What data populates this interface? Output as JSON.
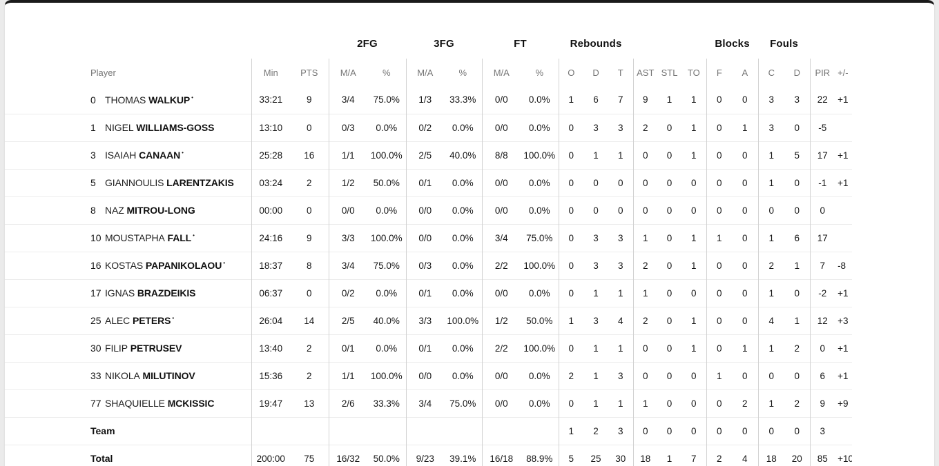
{
  "colors": {
    "top_bar": "#1a1a1a",
    "card_bg": "#ffffff",
    "page_bg": "#ebebeb"
  },
  "table": {
    "group_headers": [
      "2FG",
      "3FG",
      "FT",
      "Rebounds",
      "Blocks",
      "Fouls"
    ],
    "columns": {
      "player": "Player",
      "min": "Min",
      "pts": "PTS",
      "made_attempted": "M/A",
      "percent": "%",
      "reb_o": "O",
      "reb_d": "D",
      "reb_t": "T",
      "ast": "AST",
      "stl": "STL",
      "to": "TO",
      "blk_f": "F",
      "blk_a": "A",
      "foul_c": "C",
      "foul_d": "D",
      "pir": "PIR",
      "plus_minus": "+/-"
    },
    "rows": [
      {
        "num": "0",
        "first": "THOMAS",
        "last": "WALKUP",
        "starter": true,
        "min": "33:21",
        "pts": "9",
        "fg2_ma": "3/4",
        "fg2_pct": "75.0%",
        "fg3_ma": "1/3",
        "fg3_pct": "33.3%",
        "ft_ma": "0/0",
        "ft_pct": "0.0%",
        "reb_o": "1",
        "reb_d": "6",
        "reb_t": "7",
        "ast": "9",
        "stl": "1",
        "to": "1",
        "blk_f": "0",
        "blk_a": "0",
        "foul_c": "3",
        "foul_d": "3",
        "pir": "22",
        "pm": "+1"
      },
      {
        "num": "1",
        "first": "NIGEL",
        "last": "WILLIAMS-GOSS",
        "starter": false,
        "min": "13:10",
        "pts": "0",
        "fg2_ma": "0/3",
        "fg2_pct": "0.0%",
        "fg3_ma": "0/2",
        "fg3_pct": "0.0%",
        "ft_ma": "0/0",
        "ft_pct": "0.0%",
        "reb_o": "0",
        "reb_d": "3",
        "reb_t": "3",
        "ast": "2",
        "stl": "0",
        "to": "1",
        "blk_f": "0",
        "blk_a": "1",
        "foul_c": "3",
        "foul_d": "0",
        "pir": "-5",
        "pm": ""
      },
      {
        "num": "3",
        "first": "ISAIAH",
        "last": "CANAAN",
        "starter": true,
        "min": "25:28",
        "pts": "16",
        "fg2_ma": "1/1",
        "fg2_pct": "100.0%",
        "fg3_ma": "2/5",
        "fg3_pct": "40.0%",
        "ft_ma": "8/8",
        "ft_pct": "100.0%",
        "reb_o": "0",
        "reb_d": "1",
        "reb_t": "1",
        "ast": "0",
        "stl": "0",
        "to": "1",
        "blk_f": "0",
        "blk_a": "0",
        "foul_c": "1",
        "foul_d": "5",
        "pir": "17",
        "pm": "+1"
      },
      {
        "num": "5",
        "first": "GIANNOULIS",
        "last": "LARENTZAKIS",
        "starter": false,
        "min": "03:24",
        "pts": "2",
        "fg2_ma": "1/2",
        "fg2_pct": "50.0%",
        "fg3_ma": "0/1",
        "fg3_pct": "0.0%",
        "ft_ma": "0/0",
        "ft_pct": "0.0%",
        "reb_o": "0",
        "reb_d": "0",
        "reb_t": "0",
        "ast": "0",
        "stl": "0",
        "to": "0",
        "blk_f": "0",
        "blk_a": "0",
        "foul_c": "1",
        "foul_d": "0",
        "pir": "-1",
        "pm": "+1"
      },
      {
        "num": "8",
        "first": "NAZ",
        "last": "MITROU-LONG",
        "starter": false,
        "min": "00:00",
        "pts": "0",
        "fg2_ma": "0/0",
        "fg2_pct": "0.0%",
        "fg3_ma": "0/0",
        "fg3_pct": "0.0%",
        "ft_ma": "0/0",
        "ft_pct": "0.0%",
        "reb_o": "0",
        "reb_d": "0",
        "reb_t": "0",
        "ast": "0",
        "stl": "0",
        "to": "0",
        "blk_f": "0",
        "blk_a": "0",
        "foul_c": "0",
        "foul_d": "0",
        "pir": "0",
        "pm": ""
      },
      {
        "num": "10",
        "first": "MOUSTAPHA",
        "last": "FALL",
        "starter": true,
        "min": "24:16",
        "pts": "9",
        "fg2_ma": "3/3",
        "fg2_pct": "100.0%",
        "fg3_ma": "0/0",
        "fg3_pct": "0.0%",
        "ft_ma": "3/4",
        "ft_pct": "75.0%",
        "reb_o": "0",
        "reb_d": "3",
        "reb_t": "3",
        "ast": "1",
        "stl": "0",
        "to": "1",
        "blk_f": "1",
        "blk_a": "0",
        "foul_c": "1",
        "foul_d": "6",
        "pir": "17",
        "pm": ""
      },
      {
        "num": "16",
        "first": "KOSTAS",
        "last": "PAPANIKOLAOU",
        "starter": true,
        "min": "18:37",
        "pts": "8",
        "fg2_ma": "3/4",
        "fg2_pct": "75.0%",
        "fg3_ma": "0/3",
        "fg3_pct": "0.0%",
        "ft_ma": "2/2",
        "ft_pct": "100.0%",
        "reb_o": "0",
        "reb_d": "3",
        "reb_t": "3",
        "ast": "2",
        "stl": "0",
        "to": "1",
        "blk_f": "0",
        "blk_a": "0",
        "foul_c": "2",
        "foul_d": "1",
        "pir": "7",
        "pm": "-8"
      },
      {
        "num": "17",
        "first": "IGNAS",
        "last": "BRAZDEIKIS",
        "starter": false,
        "min": "06:37",
        "pts": "0",
        "fg2_ma": "0/2",
        "fg2_pct": "0.0%",
        "fg3_ma": "0/1",
        "fg3_pct": "0.0%",
        "ft_ma": "0/0",
        "ft_pct": "0.0%",
        "reb_o": "0",
        "reb_d": "1",
        "reb_t": "1",
        "ast": "1",
        "stl": "0",
        "to": "0",
        "blk_f": "0",
        "blk_a": "0",
        "foul_c": "1",
        "foul_d": "0",
        "pir": "-2",
        "pm": "+1"
      },
      {
        "num": "25",
        "first": "ALEC",
        "last": "PETERS",
        "starter": true,
        "min": "26:04",
        "pts": "14",
        "fg2_ma": "2/5",
        "fg2_pct": "40.0%",
        "fg3_ma": "3/3",
        "fg3_pct": "100.0%",
        "ft_ma": "1/2",
        "ft_pct": "50.0%",
        "reb_o": "1",
        "reb_d": "3",
        "reb_t": "4",
        "ast": "2",
        "stl": "0",
        "to": "1",
        "blk_f": "0",
        "blk_a": "0",
        "foul_c": "4",
        "foul_d": "1",
        "pir": "12",
        "pm": "+3"
      },
      {
        "num": "30",
        "first": "FILIP",
        "last": "PETRUSEV",
        "starter": false,
        "min": "13:40",
        "pts": "2",
        "fg2_ma": "0/1",
        "fg2_pct": "0.0%",
        "fg3_ma": "0/1",
        "fg3_pct": "0.0%",
        "ft_ma": "2/2",
        "ft_pct": "100.0%",
        "reb_o": "0",
        "reb_d": "1",
        "reb_t": "1",
        "ast": "0",
        "stl": "0",
        "to": "1",
        "blk_f": "0",
        "blk_a": "1",
        "foul_c": "1",
        "foul_d": "2",
        "pir": "0",
        "pm": "+1"
      },
      {
        "num": "33",
        "first": "NIKOLA",
        "last": "MILUTINOV",
        "starter": false,
        "min": "15:36",
        "pts": "2",
        "fg2_ma": "1/1",
        "fg2_pct": "100.0%",
        "fg3_ma": "0/0",
        "fg3_pct": "0.0%",
        "ft_ma": "0/0",
        "ft_pct": "0.0%",
        "reb_o": "2",
        "reb_d": "1",
        "reb_t": "3",
        "ast": "0",
        "stl": "0",
        "to": "0",
        "blk_f": "1",
        "blk_a": "0",
        "foul_c": "0",
        "foul_d": "0",
        "pir": "6",
        "pm": "+1"
      },
      {
        "num": "77",
        "first": "SHAQUIELLE",
        "last": "MCKISSIC",
        "starter": false,
        "min": "19:47",
        "pts": "13",
        "fg2_ma": "2/6",
        "fg2_pct": "33.3%",
        "fg3_ma": "3/4",
        "fg3_pct": "75.0%",
        "ft_ma": "0/0",
        "ft_pct": "0.0%",
        "reb_o": "0",
        "reb_d": "1",
        "reb_t": "1",
        "ast": "1",
        "stl": "0",
        "to": "0",
        "blk_f": "0",
        "blk_a": "2",
        "foul_c": "1",
        "foul_d": "2",
        "pir": "9",
        "pm": "+9"
      }
    ],
    "team_row": {
      "label": "Team",
      "min": "",
      "pts": "",
      "fg2_ma": "",
      "fg2_pct": "",
      "fg3_ma": "",
      "fg3_pct": "",
      "ft_ma": "",
      "ft_pct": "",
      "reb_o": "1",
      "reb_d": "2",
      "reb_t": "3",
      "ast": "0",
      "stl": "0",
      "to": "0",
      "blk_f": "0",
      "blk_a": "0",
      "foul_c": "0",
      "foul_d": "0",
      "pir": "3",
      "pm": ""
    },
    "total_row": {
      "label": "Total",
      "min": "200:00",
      "pts": "75",
      "fg2_ma": "16/32",
      "fg2_pct": "50.0%",
      "fg3_ma": "9/23",
      "fg3_pct": "39.1%",
      "ft_ma": "16/18",
      "ft_pct": "88.9%",
      "reb_o": "5",
      "reb_d": "25",
      "reb_t": "30",
      "ast": "18",
      "stl": "1",
      "to": "7",
      "blk_f": "2",
      "blk_a": "4",
      "foul_c": "18",
      "foul_d": "20",
      "pir": "85",
      "pm": "+10"
    }
  }
}
